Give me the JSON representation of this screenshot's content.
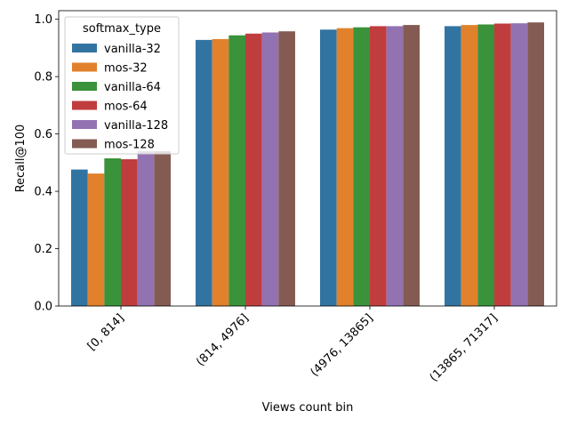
{
  "chart_data": {
    "type": "bar",
    "xlabel": "Views count bin",
    "ylabel": "Recall@100",
    "ylim": [
      0,
      1.03
    ],
    "yticks": [
      0.0,
      0.2,
      0.4,
      0.6,
      0.8,
      1.0
    ],
    "ytick_labels": [
      "0.0",
      "0.2",
      "0.4",
      "0.6",
      "0.8",
      "1.0"
    ],
    "categories": [
      "[0, 814]",
      "(814, 4976]",
      "(4976, 13865]",
      "(13865, 71317]"
    ],
    "legend": {
      "title": "softmax_type",
      "placement": "top-left"
    },
    "grid": false,
    "series": [
      {
        "name": "vanilla-32",
        "color": "#3274a1",
        "values": [
          0.476,
          0.928,
          0.964,
          0.976
        ]
      },
      {
        "name": "mos-32",
        "color": "#e1812c",
        "values": [
          0.462,
          0.931,
          0.969,
          0.98
        ]
      },
      {
        "name": "vanilla-64",
        "color": "#3a923a",
        "values": [
          0.515,
          0.944,
          0.972,
          0.982
        ]
      },
      {
        "name": "mos-64",
        "color": "#c03d3e",
        "values": [
          0.512,
          0.95,
          0.976,
          0.985
        ]
      },
      {
        "name": "vanilla-128",
        "color": "#9372b2",
        "values": [
          0.54,
          0.954,
          0.976,
          0.986
        ]
      },
      {
        "name": "mos-128",
        "color": "#845b53",
        "values": [
          0.54,
          0.958,
          0.98,
          0.989
        ]
      }
    ]
  }
}
